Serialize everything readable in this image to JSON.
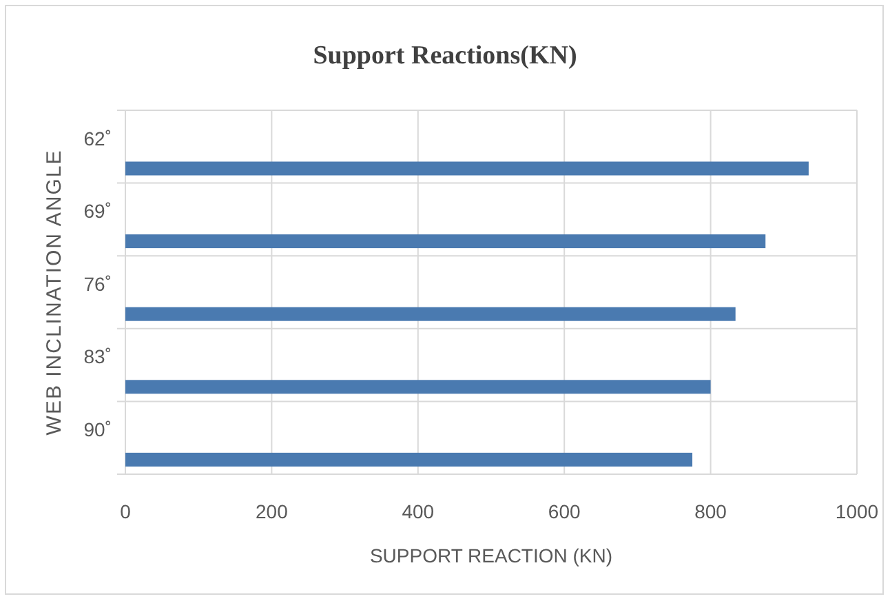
{
  "chart_data": {
    "type": "bar",
    "orientation": "horizontal",
    "title": "Support Reactions(KN)",
    "xlabel": "SUPPORT REACTION (KN)",
    "ylabel": "WEB INCLINATION ANGLE",
    "categories": [
      "62˚",
      "69˚",
      "76˚",
      "83˚",
      "90˚"
    ],
    "values": [
      934,
      875,
      834,
      800,
      775
    ],
    "color": "#4a7ab0",
    "xlim": [
      0,
      1000
    ],
    "xticks": [
      0,
      200,
      400,
      600,
      800,
      1000
    ],
    "grid": true
  }
}
